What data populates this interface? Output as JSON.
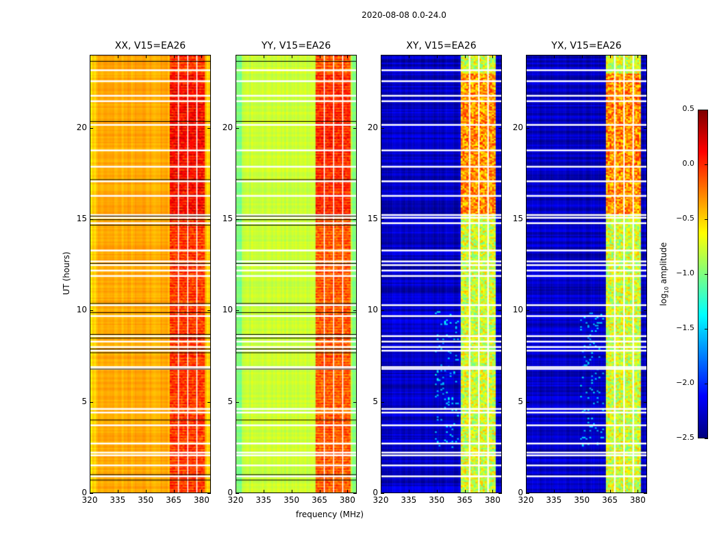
{
  "chart_data": {
    "type": "heatmap",
    "title": "2020-08-08 0.0-24.0",
    "xlabel": "frequency (MHz)",
    "ylabel": "UT (hours)",
    "xlim": [
      320,
      385
    ],
    "ylim": [
      0,
      24
    ],
    "xticks": [
      320,
      335,
      350,
      365,
      380
    ],
    "yticks": [
      0,
      5,
      10,
      15,
      20
    ],
    "panels": [
      {
        "title": "XX, V15=EA26",
        "base": -0.38,
        "band": 0.05,
        "edge": -0.05
      },
      {
        "title": "YY, V15=EA26",
        "base": -0.78,
        "band": -0.05,
        "edge": -0.25
      },
      {
        "title": "XY, V15=EA26",
        "base": -2.3,
        "band": -0.75,
        "edge": 0.0
      },
      {
        "title": "YX, V15=EA26",
        "base": -2.3,
        "band": -0.75,
        "edge": 0.0
      }
    ],
    "rfi_band_mhz": [
      363,
      382
    ],
    "subband_gaps_mhz": [
      367.5,
      372.5,
      377.5
    ],
    "flagged_times_hours": [
      23.2,
      22.6,
      21.8,
      21.5,
      20.2,
      18.8,
      17.9,
      17.1,
      16.3,
      15.25,
      15.1,
      14.8,
      13.3,
      12.7,
      12.5,
      12.2,
      11.9,
      10.3,
      9.7,
      8.6,
      8.3,
      8.0,
      7.8,
      6.9,
      6.8,
      4.6,
      4.4,
      3.7,
      2.7,
      2.2,
      2.05,
      1.5,
      0.9
    ],
    "colorbar": {
      "label": "log10 amplitude",
      "label_main": "log",
      "label_sub": "10",
      "label_rest": " amplitude",
      "range": [
        -2.5,
        0.5
      ],
      "ticks": [
        "0.5",
        "0.0",
        "−0.5",
        "−1.0",
        "−1.5",
        "−2.0",
        "−2.5"
      ],
      "colormap": "jet"
    }
  }
}
